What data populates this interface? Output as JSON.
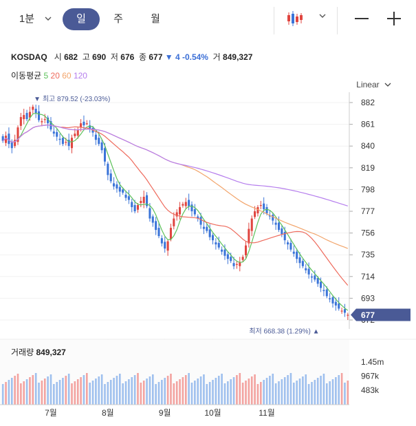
{
  "tabs": {
    "minute": "1분",
    "day": "일",
    "week": "주",
    "month": "월"
  },
  "icons": {
    "interval_chevron": "chevron-down-icon",
    "chart_type": "candlestick-icon",
    "chart_type_chevron": "chevron-down-icon",
    "zoom_out": "minus-icon",
    "zoom_in": "plus-icon"
  },
  "info": {
    "symbol": "KOSDAQ",
    "open_label": "시",
    "open": "682",
    "high_label": "고",
    "high": "690",
    "low_label": "저",
    "low": "676",
    "close_label": "종",
    "close": "677",
    "change": "▼ 4 -0.54%",
    "volume_label": "거",
    "volume": "849,327"
  },
  "ma_legend": {
    "title": "이동평균",
    "items": [
      "5",
      "20",
      "60",
      "120"
    ]
  },
  "scale_label": "Linear",
  "colors": {
    "up": "#e0453f",
    "down": "#3a74d8",
    "ma5": "#5cc15a",
    "ma20": "#ee6a5c",
    "ma60": "#f2a46a",
    "ma120": "#b57ded",
    "accent": "#4a5a96"
  },
  "chart_data": {
    "type": "candlestick",
    "series_name": "KOSDAQ",
    "y_ticks": [
      882,
      861,
      840,
      819,
      798,
      777,
      756,
      735,
      714,
      693,
      672
    ],
    "ylim": [
      666,
      888
    ],
    "x_labels": [
      "7월",
      "8월",
      "9월",
      "10월",
      "11월"
    ],
    "x_label_index": [
      16,
      35,
      54,
      70,
      88
    ],
    "high_marker": {
      "label": "최고 879.52 (-23.03%)",
      "index": 11,
      "value": 879.52
    },
    "low_marker": {
      "label": "최저 668.38 (1.29%)",
      "index": 106,
      "value": 668.38
    },
    "current_price": "677",
    "closes": [
      845,
      850,
      842,
      838,
      846,
      858,
      868,
      870,
      866,
      873,
      878,
      872,
      865,
      864,
      866,
      862,
      856,
      852,
      849,
      846,
      842,
      844,
      840,
      848,
      852,
      856,
      862,
      860,
      862,
      856,
      853,
      846,
      842,
      836,
      825,
      812,
      806,
      801,
      799,
      796,
      795,
      790,
      788,
      781,
      777,
      783,
      787,
      791,
      782,
      770,
      766,
      759,
      753,
      746,
      741,
      748,
      761,
      770,
      776,
      781,
      784,
      786,
      782,
      777,
      774,
      770,
      764,
      760,
      758,
      752,
      749,
      745,
      742,
      738,
      734,
      731,
      729,
      724,
      726,
      728,
      733,
      744,
      760,
      770,
      777,
      781,
      783,
      779,
      775,
      772,
      768,
      764,
      759,
      755,
      749,
      745,
      740,
      736,
      731,
      727,
      724,
      720,
      716,
      713,
      711,
      707,
      703,
      700,
      695,
      692,
      688,
      686,
      683,
      681,
      679,
      677
    ],
    "volume": {
      "title": "거래량",
      "value": "849,327",
      "y_ticks": [
        "1.45m",
        "967k",
        "483k"
      ]
    }
  }
}
